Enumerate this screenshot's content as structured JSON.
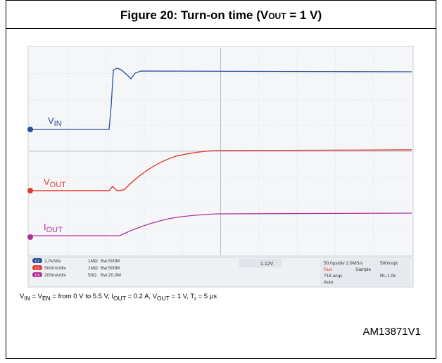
{
  "title": {
    "main": "Figure 20: Turn-on time (V",
    "sub": "OUT",
    "tail": " = 1 V)"
  },
  "scope": {
    "traces": [
      {
        "name": "V",
        "sub": "IN",
        "color": "#2b4f9c"
      },
      {
        "name": "V",
        "sub": "OUT",
        "color": "#e03a2e"
      },
      {
        "name": "I",
        "sub": "OUT",
        "color": "#b0309a"
      }
    ],
    "channels": [
      {
        "id": "C1",
        "scale": "2.0V/div",
        "imp": "1MΩ",
        "bw": "Bw:500M"
      },
      {
        "id": "C2",
        "scale": "500mV/div",
        "imp": "1MΩ",
        "bw": "Bw:500M"
      },
      {
        "id": "C4",
        "scale": "200mA/div",
        "imp": "50Ω",
        "bw": "Bw:20.0M"
      }
    ],
    "trigger": "1.12V",
    "timebase": "50.0µs/div 2.0MS/s",
    "resolution": "500ns/pt",
    "state": "Run",
    "mode": "Sample",
    "acqs": "718 acqs",
    "record": "RL:1.0k",
    "trigmode": "Auto"
  },
  "caption": [
    {
      "text": "V"
    },
    {
      "text": "IN",
      "sub": true
    },
    {
      "text": " = V"
    },
    {
      "text": "EN",
      "sub": true
    },
    {
      "text": " = from 0 V to 5.5 V, I"
    },
    {
      "text": "OUT",
      "sub": true
    },
    {
      "text": " = 0.2 A,  V"
    },
    {
      "text": "OUT",
      "sub": true
    },
    {
      "text": " = 1 V, T"
    },
    {
      "text": "r",
      "sub": true
    },
    {
      "text": " = 5 µs"
    }
  ],
  "code": "AM13871V1"
}
